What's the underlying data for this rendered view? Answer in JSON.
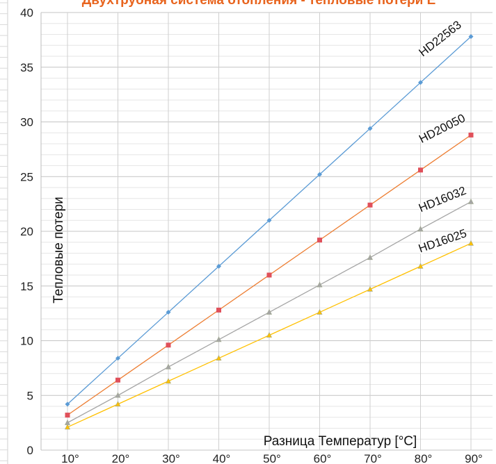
{
  "chart_data": {
    "type": "line",
    "title": "Двухтрубная система отопления - тепловые потери Е",
    "xlabel": "Разница Температур [°C]",
    "ylabel": "Тепловые потери",
    "categories": [
      "10°",
      "20°",
      "30°",
      "40°",
      "50°",
      "60°",
      "70°",
      "80°",
      "90°"
    ],
    "ylim": [
      0,
      40
    ],
    "yticks": [
      "0",
      "5",
      "10",
      "15",
      "20",
      "25",
      "30",
      "35",
      "40"
    ],
    "grid": true,
    "legend": "none",
    "series": [
      {
        "name": "HD22563",
        "color": "#5b9bd5",
        "marker": "diamond",
        "values": [
          4.2,
          8.4,
          12.6,
          16.8,
          21.0,
          25.2,
          29.4,
          33.6,
          37.8
        ]
      },
      {
        "name": "HD20050",
        "color": "#ed7d31",
        "marker": "square",
        "values": [
          3.2,
          6.4,
          9.6,
          12.8,
          16.0,
          19.2,
          22.4,
          25.6,
          28.8
        ]
      },
      {
        "name": "HD16032",
        "color": "#a5a5a5",
        "marker": "triangle",
        "values": [
          2.5,
          5.0,
          7.6,
          10.1,
          12.6,
          15.1,
          17.6,
          20.2,
          22.7
        ]
      },
      {
        "name": "HD16025",
        "color": "#ffc000",
        "marker": "triangle",
        "values": [
          2.1,
          4.2,
          6.3,
          8.4,
          10.5,
          12.6,
          14.7,
          16.8,
          18.9
        ]
      }
    ]
  }
}
